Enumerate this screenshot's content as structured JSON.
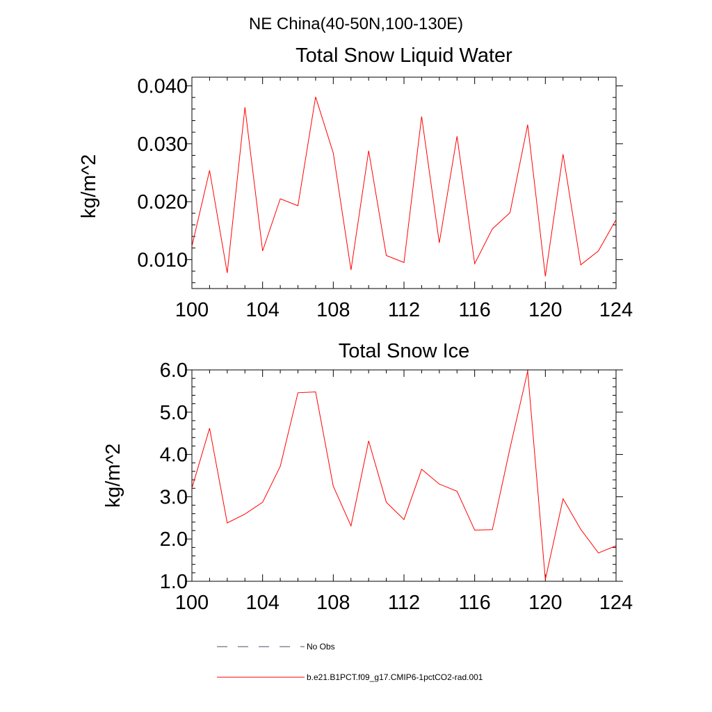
{
  "figure": {
    "title": "NE China(40-50N,100-130E)"
  },
  "chart_data": [
    {
      "type": "line",
      "title": "Total Snow Liquid Water",
      "xlabel": "",
      "ylabel": "kg/m^2",
      "xlim": [
        100,
        124
      ],
      "ylim": [
        0.005,
        0.0415
      ],
      "xticks": [
        100,
        104,
        108,
        112,
        116,
        120,
        124
      ],
      "xtick_labels": [
        "100",
        "104",
        "108",
        "112",
        "116",
        "120",
        "124"
      ],
      "yticks": [
        0.01,
        0.02,
        0.03,
        0.04
      ],
      "ytick_labels": [
        "0.010",
        "0.020",
        "0.030",
        "0.040"
      ],
      "grid": false,
      "x": [
        100,
        101,
        102,
        103,
        104,
        105,
        106,
        107,
        108,
        109,
        110,
        111,
        112,
        113,
        114,
        115,
        116,
        117,
        118,
        119,
        120,
        121,
        122,
        123,
        124
      ],
      "series": [
        {
          "name": "b.e21.B1PCT.f09_g17.CMIP6-1pctCO2-rad.001",
          "color": "#ff0000",
          "values": [
            0.0123,
            0.0254,
            0.0077,
            0.0363,
            0.0115,
            0.0205,
            0.0193,
            0.0381,
            0.0284,
            0.0082,
            0.0288,
            0.0107,
            0.0095,
            0.0347,
            0.0129,
            0.0313,
            0.0093,
            0.0153,
            0.0181,
            0.0333,
            0.0071,
            0.0282,
            0.0091,
            0.0115,
            0.0169
          ]
        }
      ]
    },
    {
      "type": "line",
      "title": "Total Snow Ice",
      "xlabel": "",
      "ylabel": "kg/m^2",
      "xlim": [
        100,
        124
      ],
      "ylim": [
        1.0,
        6.0
      ],
      "xticks": [
        100,
        104,
        108,
        112,
        116,
        120,
        124
      ],
      "xtick_labels": [
        "100",
        "104",
        "108",
        "112",
        "116",
        "120",
        "124"
      ],
      "yticks": [
        1,
        2,
        3,
        4,
        5,
        6
      ],
      "ytick_labels": [
        "1.0",
        "2.0",
        "3.0",
        "4.0",
        "5.0",
        "6.0"
      ],
      "grid": false,
      "x": [
        100,
        101,
        102,
        103,
        104,
        105,
        106,
        107,
        108,
        109,
        110,
        111,
        112,
        113,
        114,
        115,
        116,
        117,
        118,
        119,
        120,
        121,
        122,
        123,
        124
      ],
      "series": [
        {
          "name": "b.e21.B1PCT.f09_g17.CMIP6-1pctCO2-rad.001",
          "color": "#ff0000",
          "values": [
            3.2,
            4.62,
            2.38,
            2.59,
            2.87,
            3.72,
            5.46,
            5.48,
            3.25,
            2.31,
            4.32,
            2.87,
            2.46,
            3.65,
            3.3,
            3.13,
            2.21,
            2.22,
            4.15,
            5.97,
            1.04,
            2.95,
            2.23,
            1.67,
            1.84
          ]
        }
      ]
    }
  ],
  "legend": {
    "placement": "bottom",
    "items": [
      {
        "label": "No Obs",
        "color": "#4a4a6a",
        "style": "dashed"
      },
      {
        "label": "b.e21.B1PCT.f09_g17.CMIP6-1pctCO2-rad.001",
        "color": "#ff0000",
        "style": "solid"
      }
    ]
  }
}
